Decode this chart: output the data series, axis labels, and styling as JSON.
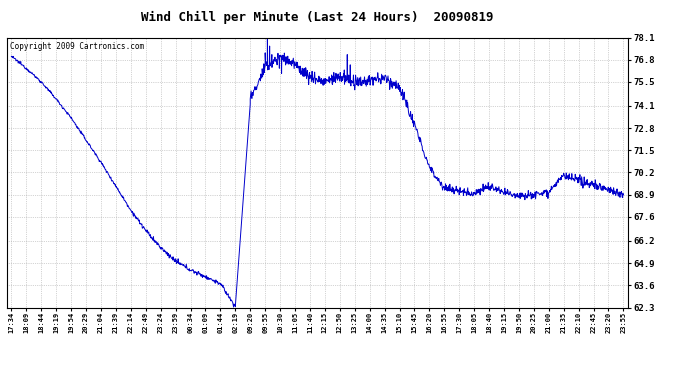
{
  "title": "Wind Chill per Minute (Last 24 Hours)  20090819",
  "copyright": "Copyright 2009 Cartronics.com",
  "line_color": "#0000cc",
  "bg_color": "#ffffff",
  "grid_color": "#aaaaaa",
  "ylim": [
    62.3,
    78.1
  ],
  "yticks": [
    62.3,
    63.6,
    64.9,
    66.2,
    67.6,
    68.9,
    70.2,
    71.5,
    72.8,
    74.1,
    75.5,
    76.8,
    78.1
  ],
  "xtick_labels": [
    "17:34",
    "18:09",
    "18:44",
    "19:19",
    "19:54",
    "20:29",
    "21:04",
    "21:39",
    "22:14",
    "22:49",
    "23:24",
    "23:59",
    "00:34",
    "01:09",
    "01:44",
    "02:19",
    "09:20",
    "09:55",
    "10:30",
    "11:05",
    "11:40",
    "12:15",
    "12:50",
    "13:25",
    "14:00",
    "14:35",
    "15:10",
    "15:45",
    "16:20",
    "16:55",
    "17:30",
    "18:05",
    "18:40",
    "19:15",
    "19:50",
    "20:25",
    "21:00",
    "21:35",
    "22:10",
    "22:45",
    "23:20",
    "23:55"
  ],
  "key_points": {
    "0": 77.0,
    "1": 76.3,
    "2": 75.5,
    "3": 74.5,
    "4": 73.4,
    "5": 72.1,
    "6": 70.8,
    "7": 69.4,
    "8": 68.0,
    "9": 66.8,
    "10": 65.8,
    "11": 65.0,
    "12": 64.5,
    "13": 64.1,
    "14": 63.7,
    "15": 62.35,
    "16": 74.5,
    "17": 76.3,
    "18": 77.0,
    "19": 76.5,
    "20": 75.8,
    "21": 75.5,
    "22": 75.8,
    "23": 75.4,
    "24": 75.6,
    "25": 75.7,
    "26": 75.2,
    "27": 73.0,
    "28": 70.5,
    "29": 69.3,
    "30": 69.1,
    "31": 69.0,
    "32": 69.4,
    "33": 69.0,
    "34": 68.9,
    "35": 68.9,
    "36": 69.1,
    "37": 70.0,
    "38": 69.7,
    "39": 69.5,
    "40": 69.2,
    "41": 68.9
  },
  "figsize": [
    6.9,
    3.75
  ],
  "dpi": 100
}
